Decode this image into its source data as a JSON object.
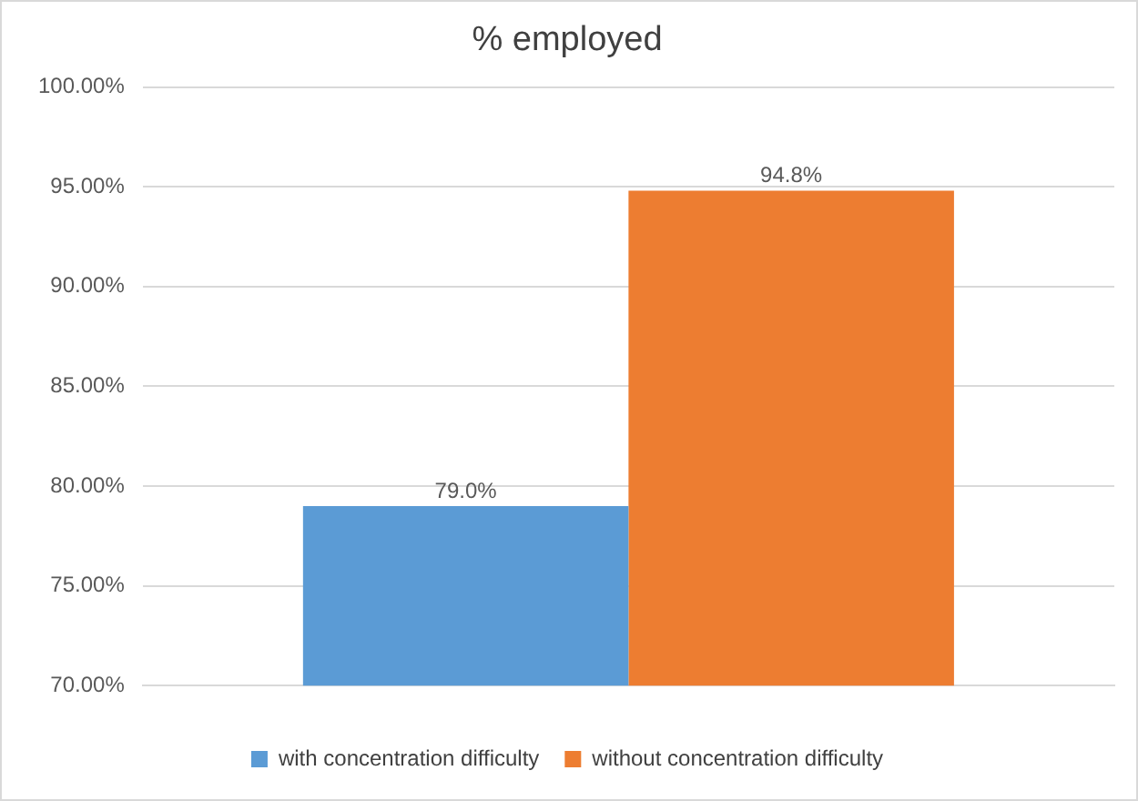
{
  "chart_data": {
    "type": "bar",
    "title": "% employed",
    "categories": [
      null
    ],
    "series": [
      {
        "name": "with concentration difficulty",
        "color": "#5b9bd5",
        "values": [
          79.0
        ],
        "value_labels": [
          "79.0%"
        ]
      },
      {
        "name": "without concentration difficulty",
        "color": "#ed7d31",
        "values": [
          94.8
        ],
        "value_labels": [
          "94.8%"
        ]
      }
    ],
    "ylim": [
      70,
      100
    ],
    "yticks": [
      {
        "value": 70,
        "label": "70.00%"
      },
      {
        "value": 75,
        "label": "75.00%"
      },
      {
        "value": 80,
        "label": "80.00%"
      },
      {
        "value": 85,
        "label": "85.00%"
      },
      {
        "value": 90,
        "label": "90.00%"
      },
      {
        "value": 95,
        "label": "95.00%"
      },
      {
        "value": 100,
        "label": "100.00%"
      }
    ],
    "grid": "y",
    "legend": "bottom"
  }
}
